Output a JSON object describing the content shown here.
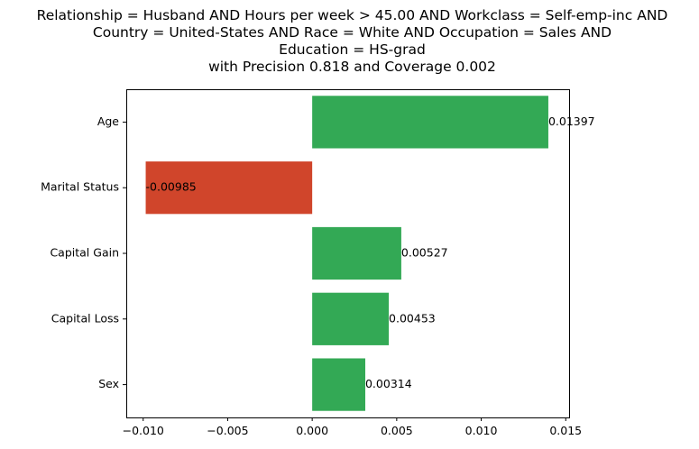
{
  "chart_data": {
    "type": "bar",
    "orientation": "horizontal",
    "title_lines": [
      "Relationship = Husband AND Hours per week > 45.00 AND Workclass = Self-emp-inc AND",
      "Country = United-States AND Race = White AND Occupation = Sales AND",
      "Education = HS-grad",
      "with Precision 0.818 and Coverage 0.002"
    ],
    "categories": [
      "Age",
      "Marital Status",
      "Capital Gain",
      "Capital Loss",
      "Sex"
    ],
    "values": [
      0.01397,
      -0.00985,
      0.00527,
      0.00453,
      0.00314
    ],
    "value_labels": [
      "0.01397",
      "-0.00985",
      "0.00527",
      "0.00453",
      "0.00314"
    ],
    "xlim": [
      -0.011,
      0.0152
    ],
    "xticks": [
      -0.01,
      -0.005,
      0.0,
      0.005,
      0.01,
      0.015
    ],
    "xtick_labels": [
      "−0.010",
      "−0.005",
      "0.000",
      "0.005",
      "0.010",
      "0.015"
    ],
    "grid": false,
    "colors": {
      "positive": "#33a955",
      "negative": "#d0452b"
    }
  }
}
